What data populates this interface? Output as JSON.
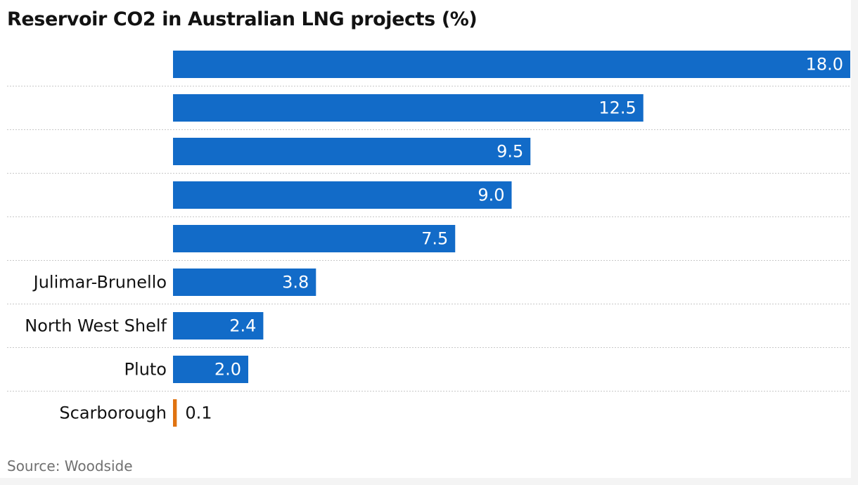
{
  "chart_data": {
    "type": "bar",
    "orientation": "horizontal",
    "title": "Reservoir CO2 in Australian LNG projects (%)",
    "source": "Source: Woodside",
    "categories": [
      "",
      "",
      "",
      "",
      "",
      "Julimar-Brunello",
      "North West Shelf",
      "Pluto",
      "Scarborough"
    ],
    "values": [
      18.0,
      12.5,
      9.5,
      9.0,
      7.5,
      3.8,
      2.4,
      2.0,
      0.1
    ],
    "value_labels": [
      "18.0",
      "12.5",
      "9.5",
      "9.0",
      "7.5",
      "3.8",
      "2.4",
      "2.0",
      "0.1"
    ],
    "xlim": [
      0,
      18
    ],
    "grid": false,
    "colors": {
      "bar": "#126bc8",
      "highlight": "#e07311",
      "highlight_category": "Scarborough",
      "separator": "#c8c8c8",
      "label_inside": "#ffffff",
      "label_outside": "#121212",
      "category_text": "#121212"
    }
  }
}
